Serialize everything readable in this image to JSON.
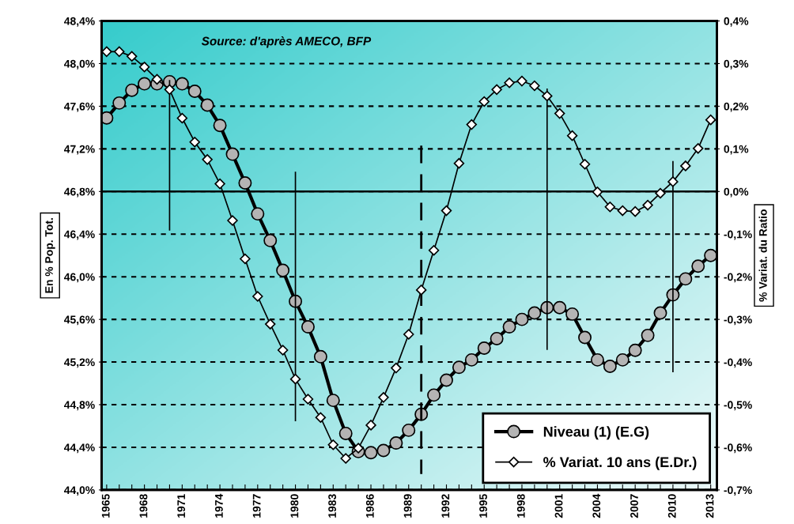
{
  "chart_data": {
    "type": "line",
    "ylabel": "En % Pop. Tot.",
    "y2label": "% Variat. du Ratio",
    "annotations": [
      "Source: d'après AMECO, BFP"
    ],
    "x": [
      1965,
      1966,
      1967,
      1968,
      1969,
      1970,
      1971,
      1972,
      1973,
      1974,
      1975,
      1976,
      1977,
      1978,
      1979,
      1980,
      1981,
      1982,
      1983,
      1984,
      1985,
      1986,
      1987,
      1988,
      1989,
      1990,
      1991,
      1992,
      1993,
      1994,
      1995,
      1996,
      1997,
      1998,
      1999,
      2000,
      2001,
      2002,
      2003,
      2004,
      2005,
      2006,
      2007,
      2008,
      2009,
      2010,
      2011,
      2012,
      2013
    ],
    "series": [
      {
        "name": "Niveau (1) (E.G)",
        "color": "#000000",
        "marker": "circle",
        "values": [
          47.49,
          47.63,
          47.75,
          47.81,
          47.81,
          47.83,
          47.81,
          47.74,
          47.61,
          47.42,
          47.15,
          46.88,
          46.59,
          46.34,
          46.06,
          45.77,
          45.53,
          45.25,
          44.84,
          44.53,
          44.36,
          44.35,
          44.37,
          44.44,
          44.56,
          44.71,
          44.89,
          45.03,
          45.15,
          45.22,
          45.33,
          45.42,
          45.53,
          45.6,
          45.66,
          45.71,
          45.71,
          45.65,
          45.43,
          45.22,
          45.16,
          45.22,
          45.31,
          45.45,
          45.66,
          45.83,
          45.98,
          46.1,
          46.2
        ]
      },
      {
        "name": "% Variat. 10 ans (E.Dr.)",
        "color": "#000000",
        "marker": "diamond",
        "axis": "y2",
        "values": [
          0.328,
          0.328,
          0.317,
          0.292,
          0.263,
          0.239,
          0.172,
          0.116,
          0.075,
          0.018,
          -0.068,
          -0.158,
          -0.246,
          -0.311,
          -0.372,
          -0.44,
          -0.487,
          -0.53,
          -0.594,
          -0.626,
          -0.602,
          -0.548,
          -0.483,
          -0.414,
          -0.335,
          -0.231,
          -0.138,
          -0.045,
          0.066,
          0.157,
          0.211,
          0.239,
          0.255,
          0.259,
          0.248,
          0.224,
          0.183,
          0.131,
          0.064,
          -0.001,
          -0.036,
          -0.045,
          -0.047,
          -0.032,
          -0.004,
          0.023,
          0.06,
          0.101,
          0.168
        ]
      },
      {
        "color": "#000000",
        "marker": "none",
        "x": [
          1970,
          1970
        ],
        "values": [
          47.84,
          46.44
        ]
      },
      {
        "color": "#000000",
        "marker": "none",
        "x": [
          1980,
          1980
        ],
        "values": [
          46.98,
          44.65
        ]
      },
      {
        "color": "#000000",
        "marker": "none",
        "line_style": "dashed",
        "x": [
          1990,
          1990
        ],
        "values": [
          47.23,
          44.15
        ]
      },
      {
        "color": "#000000",
        "marker": "none",
        "x": [
          2000,
          2000
        ],
        "values": [
          47.76,
          45.32
        ]
      },
      {
        "color": "#000000",
        "marker": "none",
        "x": [
          2010,
          2010
        ],
        "values": [
          47.08,
          45.11
        ]
      }
    ],
    "ref_lines": [
      {
        "axis": "y2",
        "value": 0,
        "color": "#000000",
        "line_style": "solid"
      }
    ],
    "xlim": [
      1964.6,
      2013.5
    ],
    "xticks": [
      1965,
      {
        "value": 1966,
        "label": null
      },
      {
        "value": 1967,
        "label": null
      },
      1968,
      {
        "value": 1969,
        "label": null
      },
      {
        "value": 1970,
        "label": null
      },
      1971,
      {
        "value": 1972,
        "label": null
      },
      {
        "value": 1973,
        "label": null
      },
      1974,
      {
        "value": 1975,
        "label": null
      },
      {
        "value": 1976,
        "label": null
      },
      1977,
      {
        "value": 1978,
        "label": null
      },
      {
        "value": 1979,
        "label": null
      },
      1980,
      {
        "value": 1981,
        "label": null
      },
      {
        "value": 1982,
        "label": null
      },
      1983,
      {
        "value": 1984,
        "label": null
      },
      {
        "value": 1985,
        "label": null
      },
      1986,
      {
        "value": 1987,
        "label": null
      },
      {
        "value": 1988,
        "label": null
      },
      1989,
      {
        "value": 1990,
        "label": null
      },
      {
        "value": 1991,
        "label": null
      },
      1992,
      {
        "value": 1993,
        "label": null
      },
      {
        "value": 1994,
        "label": null
      },
      1995,
      {
        "value": 1996,
        "label": null
      },
      {
        "value": 1997,
        "label": null
      },
      1998,
      {
        "value": 1999,
        "label": null
      },
      {
        "value": 2000,
        "label": null
      },
      2001,
      {
        "value": 2002,
        "label": null
      },
      {
        "value": 2003,
        "label": null
      },
      2004,
      {
        "value": 2005,
        "label": null
      },
      {
        "value": 2006,
        "label": null
      },
      2007,
      {
        "value": 2008,
        "label": null
      },
      {
        "value": 2009,
        "label": null
      },
      2010,
      {
        "value": 2011,
        "label": null
      },
      {
        "value": 2012,
        "label": null
      },
      2013
    ],
    "ylim": [
      44.0,
      48.4
    ],
    "yticks": [
      {
        "value": 44.0,
        "label": "44,0%"
      },
      {
        "value": 44.4,
        "label": "44,4%"
      },
      {
        "value": 44.8,
        "label": "44,8%"
      },
      {
        "value": 45.2,
        "label": "45,2%"
      },
      {
        "value": 45.6,
        "label": "45,6%"
      },
      {
        "value": 46.0,
        "label": "46,0%"
      },
      {
        "value": 46.4,
        "label": "46,4%"
      },
      {
        "value": 46.8,
        "label": "46,8%"
      },
      {
        "value": 47.2,
        "label": "47,2%"
      },
      {
        "value": 47.6,
        "label": "47,6%"
      },
      {
        "value": 48.0,
        "label": "48,0%"
      },
      {
        "value": 48.4,
        "label": "48,4%"
      }
    ],
    "y2lim": [
      -0.7,
      0.4
    ],
    "y2ticks": [
      {
        "value": -0.7,
        "label": "-0,7%"
      },
      {
        "value": -0.6,
        "label": "-0,6%"
      },
      {
        "value": -0.5,
        "label": "-0,5%"
      },
      {
        "value": -0.4,
        "label": "-0,4%"
      },
      {
        "value": -0.3,
        "label": "-0,3%"
      },
      {
        "value": -0.2,
        "label": "-0,2%"
      },
      {
        "value": -0.1,
        "label": "-0,1%"
      },
      {
        "value": 0.0,
        "label": "0,0%"
      },
      {
        "value": 0.1,
        "label": "0,1%"
      },
      {
        "value": 0.2,
        "label": "0,2%"
      },
      {
        "value": 0.3,
        "label": "0,3%"
      },
      {
        "value": 0.4,
        "label": "0,4%"
      }
    ],
    "grid": "y",
    "legend": "bottom right",
    "line_style": "solid"
  }
}
